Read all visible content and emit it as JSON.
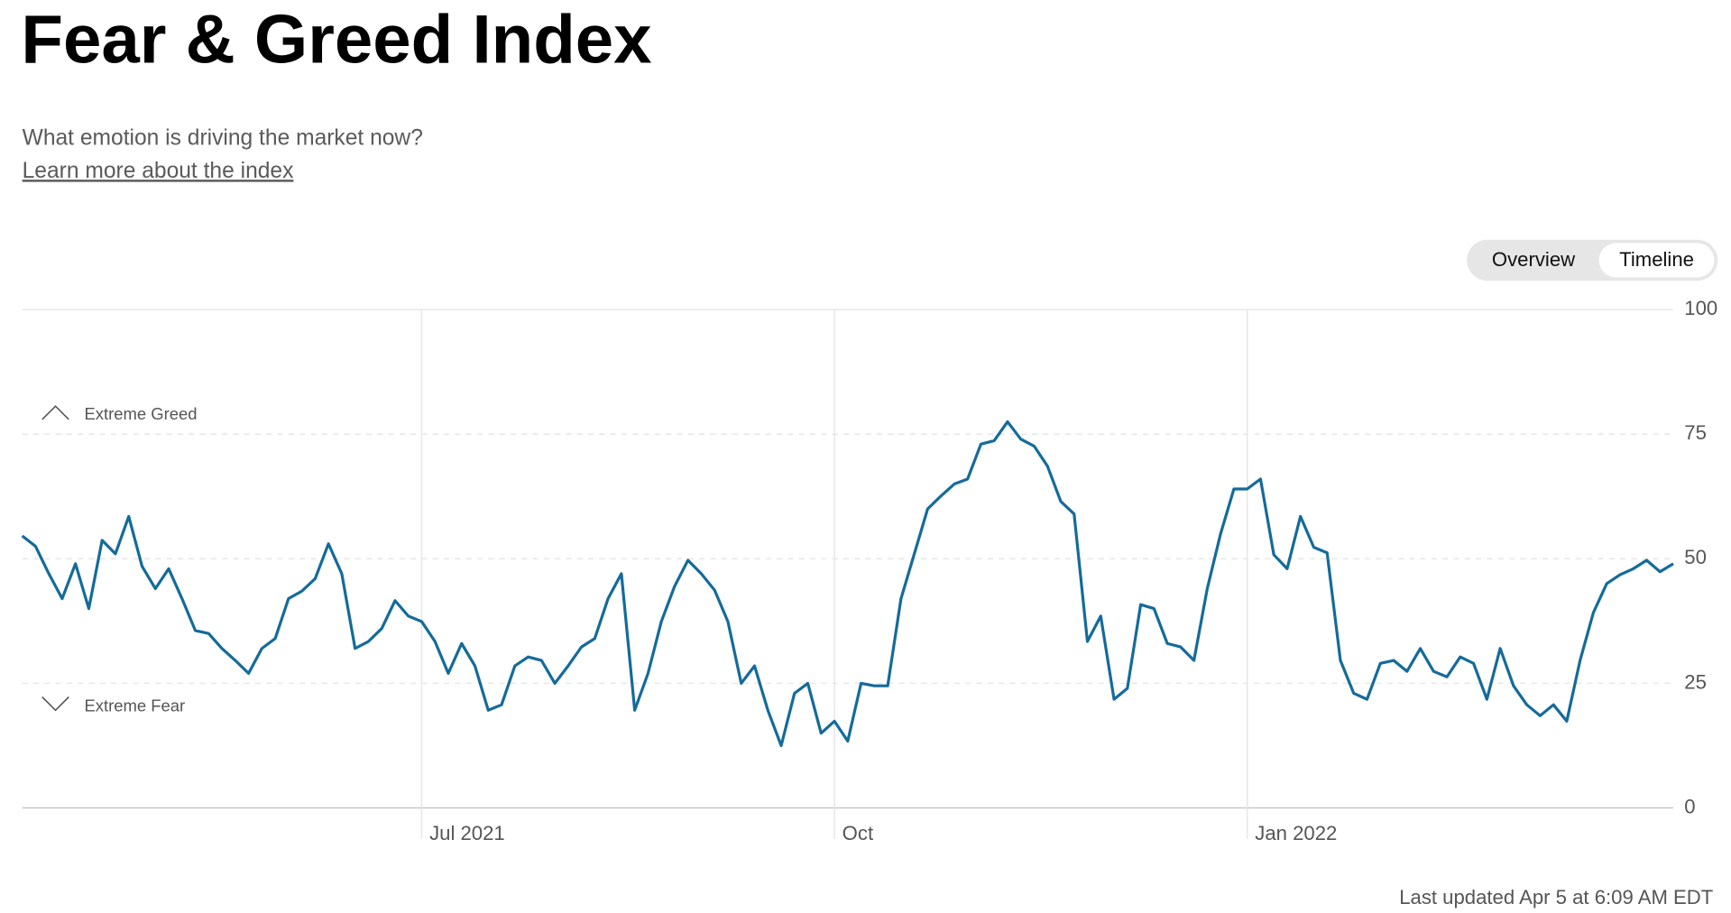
{
  "header": {
    "title": "Fear & Greed Index",
    "subtitle": "What emotion is driving the market now?",
    "link": "Learn more about the index"
  },
  "controls": {
    "options": [
      "Overview",
      "Timeline"
    ],
    "selected": "Timeline"
  },
  "chart_data": {
    "type": "line",
    "categories": [
      null,
      null,
      null,
      null,
      null,
      null,
      null,
      null,
      null,
      null,
      null,
      null,
      null,
      null,
      null,
      null,
      null,
      null,
      null,
      null,
      null,
      null,
      null,
      null,
      null,
      null,
      null,
      null,
      null,
      null,
      "Jul 2021",
      null,
      null,
      null,
      null,
      null,
      null,
      null,
      null,
      null,
      null,
      null,
      null,
      null,
      null,
      null,
      null,
      null,
      null,
      null,
      null,
      null,
      null,
      null,
      null,
      null,
      null,
      null,
      null,
      null,
      null,
      "Oct",
      null,
      null,
      null,
      null,
      null,
      null,
      null,
      null,
      null,
      null,
      null,
      null,
      null,
      null,
      null,
      null,
      null,
      null,
      null,
      null,
      null,
      null,
      null,
      null,
      null,
      null,
      null,
      null,
      null,
      null,
      "Jan 2022",
      null,
      null,
      null,
      null,
      null,
      null,
      null,
      null,
      null,
      null,
      null,
      null,
      null,
      null,
      null,
      null,
      null,
      null,
      null,
      null,
      null,
      null,
      null,
      null,
      null,
      null,
      null,
      null,
      null,
      null,
      null,
      null
    ],
    "series": [
      {
        "color": "#146b9a",
        "values": [
          54.6,
          52.5,
          47,
          42,
          49,
          40,
          53.7,
          51,
          58.5,
          48.5,
          44,
          48,
          42,
          35.6,
          35,
          32,
          29.6,
          27,
          32,
          34,
          42,
          43.5,
          46,
          53,
          47,
          32,
          33.4,
          36,
          41.6,
          38.5,
          37.4,
          33.4,
          27,
          33,
          28.5,
          19.6,
          20.7,
          28.5,
          30.3,
          29.6,
          25,
          28.5,
          32.3,
          34,
          42,
          47,
          19.6,
          27,
          37.4,
          44.5,
          49.7,
          47,
          43.7,
          37.4,
          25,
          28.5,
          19.6,
          12.5,
          23,
          25,
          15,
          17.4,
          13.4,
          25,
          24.5,
          24.5,
          42,
          51,
          60,
          62.6,
          65,
          66,
          73,
          73.7,
          77.5,
          74,
          72.6,
          68.6,
          61.5,
          59,
          33.4,
          38.5,
          21.8,
          24,
          40.8,
          40,
          33,
          32.3,
          29.6,
          44,
          55,
          64,
          64,
          66,
          50.8,
          48,
          58.5,
          52.3,
          51.2,
          29.6,
          23,
          21.8,
          29,
          29.6,
          27.4,
          32,
          27.4,
          26.3,
          30.3,
          29,
          21.8,
          32,
          24.5,
          20.7,
          18.5,
          20.7,
          17.4,
          29.6,
          39.2,
          45,
          46.8,
          48,
          49.7,
          47.4,
          49
        ]
      }
    ],
    "ylim": [
      0,
      100
    ],
    "yticks": [
      0,
      25,
      50,
      75,
      100
    ],
    "grid": true,
    "annotations": [
      "Extreme Greed",
      "Extreme Fear"
    ],
    "footer": "Last updated Apr 5 at 6:09 AM EDT"
  }
}
